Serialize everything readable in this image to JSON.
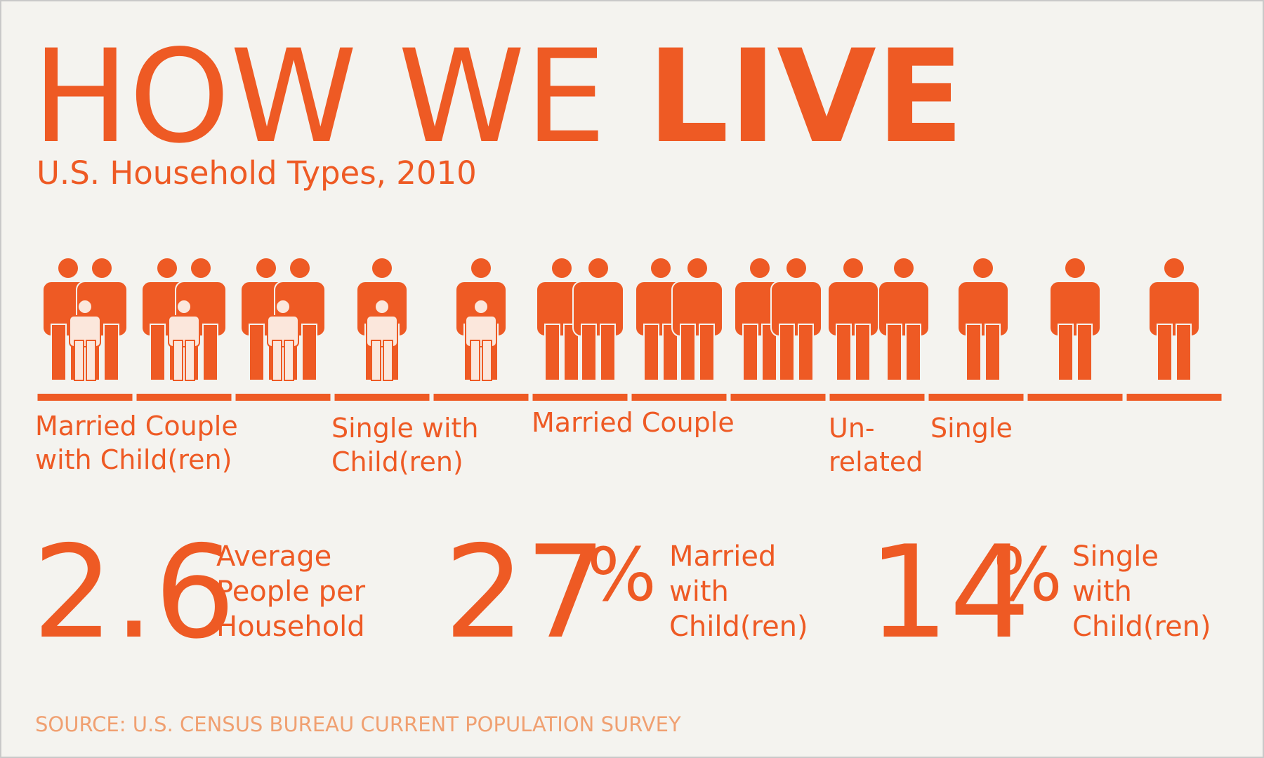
{
  "header": {
    "title_light": "HOW WE",
    "title_bold": "LIVE",
    "subtitle": "U.S. Household Types, 2010"
  },
  "groups": [
    {
      "lines": [
        "Married Couple",
        "with Child(ren)"
      ]
    },
    {
      "lines": [
        "Single with",
        "Child(ren)"
      ]
    },
    {
      "lines": [
        "Married Couple"
      ]
    },
    {
      "lines": [
        "Un-",
        "related"
      ]
    },
    {
      "lines": [
        "Single"
      ]
    }
  ],
  "stats": [
    {
      "number": "2.6",
      "lines": [
        "Average",
        "People per",
        "Household"
      ]
    },
    {
      "number": "27",
      "unit": "%",
      "lines": [
        "Married",
        "with",
        "Child(ren)"
      ]
    },
    {
      "number": "14",
      "unit": "%",
      "lines": [
        "Single",
        "with",
        "Child(ren)"
      ]
    }
  ],
  "source": "SOURCE: U.S. CENSUS BUREAU CURRENT POPULATION SURVEY"
}
